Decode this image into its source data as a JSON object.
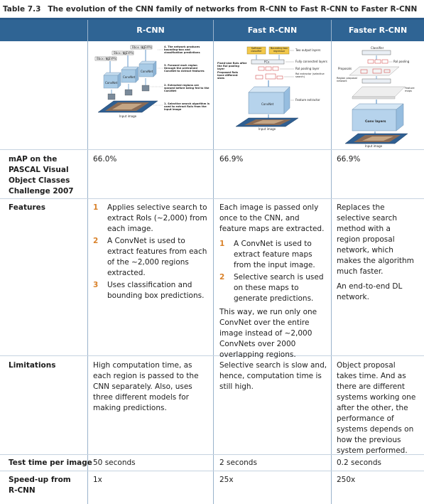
{
  "caption": {
    "number": "Table 7.3",
    "title": "The evolution of the CNN family of networks from R-CNN to Fast R-CNN to Faster R-CNN"
  },
  "columns": [
    "R-CNN",
    "Fast R-CNN",
    "Faster R-CNN"
  ],
  "diagrams": {
    "rcnn": {
      "bbox_reg": "Bbox reg",
      "svms": "SVMs",
      "convnet": "ConvNet",
      "input_image": "Input image",
      "note4": "4. The network produces bounding-box and classification predictions",
      "note3": "3. Forward each region through the pretrained ConvNet to extract features",
      "note2": "2. Extracted regions are warped before being fed to the ConvNet",
      "note1": "1. Selective search algorithm is used to extract RoIs from the input image"
    },
    "fast": {
      "softmax": "Softmax classifier",
      "bbox_regressor": "Bounding box regressor",
      "two_output": "Two output layers",
      "fcs": "FCs",
      "fc_layers": "Fully connected layers",
      "roi_pool": "RoI pooling layer",
      "roi_extractor": "RoI extractor (selective search)",
      "fixed_size": "Fixed-size RoIs after the RoI pooling layer",
      "proposed": "Proposed RoIs have different sizes",
      "convnet": "ConvNet",
      "feature_extractor": "Feature extractor",
      "input_image": "Input image"
    },
    "faster": {
      "classifier": "Classifier",
      "roi_pooling": "RoI pooling",
      "proposals": "Proposals",
      "rpn": "Region proposal network",
      "feature_maps": "Feature maps",
      "conv_layers": "Conv layers",
      "input_image": "Input image"
    }
  },
  "rows": {
    "map": {
      "label": "mAP on the PASCAL Visual Object Classes Challenge 2007",
      "rcnn": "66.0%",
      "fast": "66.9%",
      "faster": "66.9%"
    },
    "features": {
      "label": "Features",
      "rcnn": [
        {
          "n": "1",
          "text": "Applies selective search to extract RoIs (~2,000) from each image."
        },
        {
          "n": "2",
          "text": "A ConvNet is used to extract features from each of the ~2,000 regions extracted."
        },
        {
          "n": "3",
          "text": "Uses classification and bounding box predictions."
        }
      ],
      "fast_intro": "Each image is passed only once to the CNN, and feature maps are extracted.",
      "fast": [
        {
          "n": "1",
          "text": "A ConvNet is used to extract feature maps from the input image."
        },
        {
          "n": "2",
          "text": "Selective search is used on these maps to generate predictions."
        }
      ],
      "fast_outro": "This way, we run only one ConvNet over the entire image instead of ~2,000 ConvNets over 2000 overlapping regions.",
      "faster_p1": "Replaces the selective search method with a region proposal network, which makes the algorithm much faster.",
      "faster_p2": "An end-to-end DL network."
    },
    "limitations": {
      "label": "Limitations",
      "rcnn": "High computation time, as each region is passed to the CNN separately. Also, uses three different models for making predictions.",
      "fast": "Selective search is slow and, hence, computation time is still high.",
      "faster": "Object proposal takes time. And as there are different systems working one after the other, the performance of systems depends on how the previous system performed."
    },
    "test_time": {
      "label": "Test time per image",
      "rcnn": "50 seconds",
      "fast": "2 seconds",
      "faster": "0.2 seconds"
    },
    "speedup": {
      "label": "Speed-up from R-CNN",
      "rcnn": "1x",
      "fast": "25x",
      "faster": "250x"
    }
  },
  "colors": {
    "header_bg": "#2f6494",
    "number_accent": "#d9822b",
    "feature_box": "#f3c84a"
  }
}
